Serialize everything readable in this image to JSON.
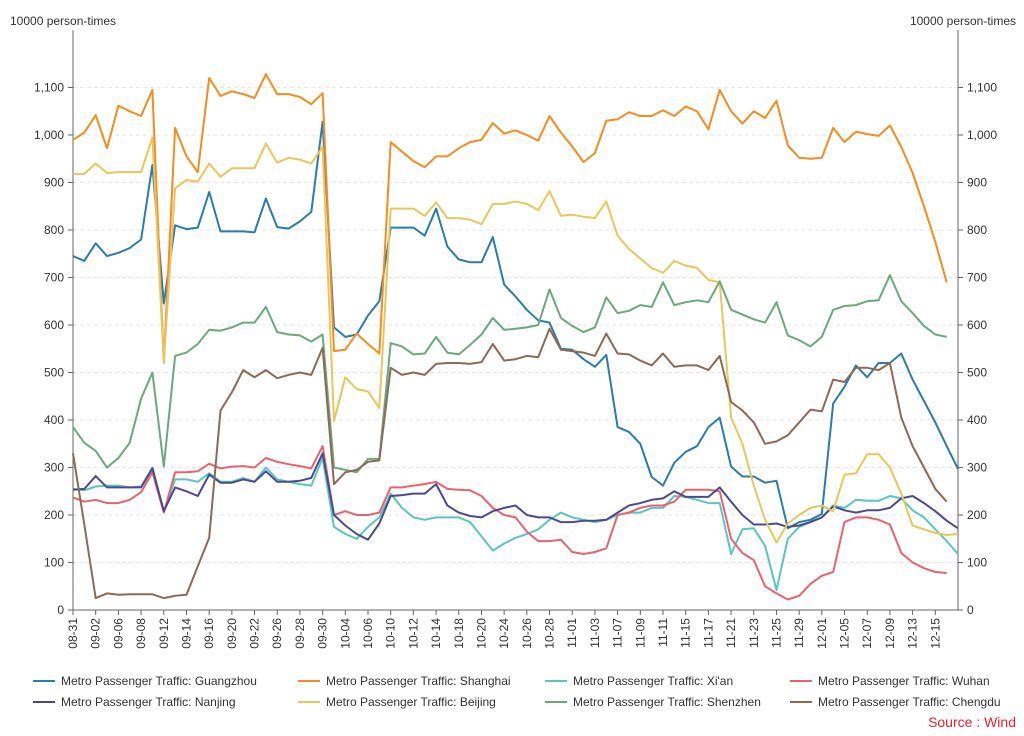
{
  "unit_left": "10000 person-times",
  "unit_right": "10000 person-times",
  "source_label": "Source : Wind",
  "chart_data": {
    "type": "line",
    "title": "",
    "ylim": [
      0,
      1200
    ],
    "y_ticks": [
      "0",
      "100",
      "200",
      "300",
      "400",
      "500",
      "600",
      "700",
      "800",
      "900",
      "1,000",
      "1,100"
    ],
    "y_tick_values": [
      0,
      100,
      200,
      300,
      400,
      500,
      600,
      700,
      800,
      900,
      1000,
      1100
    ],
    "x_tick_labels": [
      "08-31",
      "09-02",
      "09-06",
      "09-08",
      "09-12",
      "09-14",
      "09-16",
      "09-20",
      "09-22",
      "09-26",
      "09-28",
      "09-30",
      "10-04",
      "10-06",
      "10-10",
      "10-12",
      "10-14",
      "10-18",
      "10-20",
      "10-24",
      "10-26",
      "10-28",
      "11-01",
      "11-03",
      "11-07",
      "11-09",
      "11-11",
      "11-15",
      "11-17",
      "11-21",
      "11-23",
      "11-25",
      "11-29",
      "12-01",
      "12-05",
      "12-07",
      "12-09",
      "12-13",
      "12-15"
    ],
    "x_tick_positions": [
      0,
      2,
      4,
      6,
      8,
      10,
      12,
      14,
      16,
      18,
      20,
      22,
      24,
      26,
      28,
      30,
      32,
      34,
      36,
      38,
      40,
      42,
      44,
      46,
      48,
      50,
      52,
      54,
      56,
      58,
      60,
      62,
      64,
      66,
      68,
      70,
      72,
      74,
      76
    ],
    "grid": true,
    "legend_position": "bottom",
    "series": [
      {
        "name": "Metro Passenger Traffic: Guangzhou",
        "color": "#2b7bab",
        "values": [
          745,
          735,
          772,
          745,
          752,
          762,
          780,
          937,
          645,
          810,
          802,
          805,
          880,
          797,
          797,
          797,
          795,
          866,
          806,
          803,
          818,
          838,
          1028,
          595,
          575,
          580,
          620,
          650,
          805,
          805,
          805,
          788,
          845,
          765,
          738,
          732,
          732,
          785,
          685,
          660,
          632,
          610,
          605,
          550,
          548,
          528,
          512,
          537,
          385,
          375,
          350,
          280,
          262,
          310,
          333,
          345,
          385,
          405,
          302,
          281,
          281,
          268,
          272,
          172,
          185,
          190,
          202,
          435,
          470,
          515,
          490,
          520,
          520,
          540,
          485,
          440,
          395,
          345,
          297
        ]
      },
      {
        "name": "Metro Passenger Traffic: Shanghai",
        "color": "#f48c1f",
        "values": [
          990,
          1005,
          1042,
          972,
          1062,
          1050,
          1040,
          1095,
          520,
          1015,
          955,
          922,
          1120,
          1082,
          1092,
          1086,
          1078,
          1128,
          1086,
          1086,
          1080,
          1065,
          1088,
          545,
          548,
          582,
          560,
          540,
          985,
          965,
          945,
          932,
          955,
          955,
          972,
          985,
          990,
          1025,
          1003,
          1010,
          1000,
          988,
          1040,
          1005,
          976,
          943,
          962,
          1030,
          1033,
          1048,
          1040,
          1040,
          1052,
          1040,
          1060,
          1050,
          1012,
          1095,
          1050,
          1024,
          1050,
          1036,
          1072,
          978,
          952,
          950,
          952,
          1015,
          985,
          1007,
          1002,
          998,
          1020,
          975,
          920,
          850,
          775,
          690
        ]
      },
      {
        "name": "Metro Passenger Traffic: Xi'an",
        "color": "#5bc5c3",
        "values": [
          255,
          252,
          260,
          262,
          262,
          258,
          260,
          300,
          208,
          275,
          275,
          270,
          288,
          270,
          270,
          278,
          270,
          300,
          275,
          270,
          265,
          262,
          320,
          175,
          160,
          150,
          175,
          195,
          245,
          215,
          195,
          190,
          195,
          195,
          195,
          185,
          155,
          125,
          140,
          152,
          160,
          170,
          190,
          205,
          195,
          190,
          185,
          190,
          200,
          205,
          205,
          215,
          215,
          240,
          238,
          232,
          225,
          225,
          118,
          170,
          172,
          135,
          42,
          150,
          175,
          185,
          195,
          220,
          215,
          232,
          230,
          230,
          240,
          235,
          210,
          195,
          170,
          145,
          118
        ]
      },
      {
        "name": "Metro Passenger Traffic: Wuhan",
        "color": "#e8646c",
        "values": [
          237,
          228,
          232,
          225,
          225,
          232,
          248,
          290,
          205,
          290,
          290,
          292,
          308,
          298,
          302,
          303,
          300,
          320,
          312,
          307,
          303,
          298,
          345,
          200,
          208,
          200,
          200,
          205,
          258,
          258,
          262,
          265,
          270,
          255,
          253,
          252,
          240,
          215,
          200,
          195,
          165,
          145,
          145,
          148,
          122,
          118,
          122,
          130,
          200,
          205,
          215,
          220,
          220,
          228,
          253,
          253,
          253,
          250,
          150,
          120,
          105,
          50,
          35,
          22,
          30,
          55,
          72,
          80,
          185,
          195,
          195,
          190,
          180,
          120,
          100,
          88,
          80,
          78
        ]
      },
      {
        "name": "Metro Passenger Traffic: Nanjing",
        "color": "#4a4b8c",
        "values": [
          253,
          255,
          282,
          258,
          258,
          258,
          258,
          298,
          208,
          258,
          250,
          240,
          285,
          268,
          268,
          275,
          270,
          292,
          270,
          270,
          272,
          278,
          330,
          200,
          178,
          160,
          148,
          182,
          240,
          242,
          245,
          245,
          265,
          220,
          205,
          198,
          195,
          208,
          215,
          220,
          200,
          195,
          195,
          185,
          185,
          188,
          188,
          190,
          205,
          220,
          225,
          232,
          235,
          250,
          238,
          238,
          238,
          258,
          228,
          200,
          180,
          180,
          182,
          175,
          178,
          185,
          195,
          218,
          210,
          205,
          210,
          210,
          215,
          235,
          240,
          225,
          208,
          188,
          172
        ]
      },
      {
        "name": "Metro Passenger Traffic: Beijing",
        "color": "#e8c65b",
        "values": [
          918,
          918,
          940,
          920,
          922,
          922,
          922,
          995,
          520,
          888,
          905,
          902,
          940,
          912,
          930,
          930,
          930,
          982,
          942,
          952,
          948,
          940,
          975,
          398,
          490,
          465,
          460,
          425,
          845,
          845,
          845,
          830,
          858,
          825,
          825,
          822,
          812,
          855,
          855,
          860,
          855,
          842,
          882,
          830,
          832,
          828,
          825,
          860,
          788,
          760,
          740,
          720,
          710,
          735,
          725,
          720,
          695,
          690,
          405,
          350,
          262,
          190,
          142,
          182,
          200,
          215,
          220,
          208,
          285,
          288,
          328,
          328,
          300,
          245,
          178,
          170,
          162,
          158,
          160
        ]
      },
      {
        "name": "Metro Passenger Traffic: Shenzhen",
        "color": "#6aa97a",
        "values": [
          385,
          352,
          335,
          300,
          320,
          352,
          445,
          500,
          302,
          535,
          542,
          560,
          590,
          588,
          595,
          605,
          605,
          638,
          585,
          580,
          578,
          565,
          580,
          300,
          295,
          290,
          318,
          318,
          562,
          555,
          538,
          540,
          575,
          542,
          538,
          558,
          580,
          615,
          590,
          592,
          595,
          600,
          675,
          615,
          598,
          585,
          595,
          658,
          625,
          630,
          642,
          638,
          690,
          642,
          648,
          652,
          648,
          692,
          632,
          622,
          612,
          605,
          648,
          578,
          568,
          555,
          575,
          632,
          640,
          642,
          650,
          652,
          705,
          650,
          625,
          598,
          580,
          575
        ]
      },
      {
        "name": "Metro Passenger Traffic: Chengdu",
        "color": "#8c6a55",
        "values": [
          330,
          180,
          25,
          35,
          32,
          33,
          33,
          33,
          25,
          30,
          32,
          92,
          152,
          420,
          458,
          505,
          490,
          505,
          488,
          495,
          500,
          495,
          552,
          265,
          290,
          295,
          312,
          315,
          510,
          495,
          500,
          495,
          518,
          520,
          520,
          518,
          522,
          560,
          525,
          528,
          535,
          532,
          592,
          548,
          545,
          542,
          535,
          582,
          540,
          538,
          525,
          515,
          540,
          512,
          515,
          515,
          505,
          535,
          438,
          420,
          395,
          350,
          355,
          368,
          395,
          422,
          418,
          485,
          480,
          510,
          510,
          505,
          520,
          405,
          345,
          300,
          255,
          228
        ]
      }
    ]
  }
}
